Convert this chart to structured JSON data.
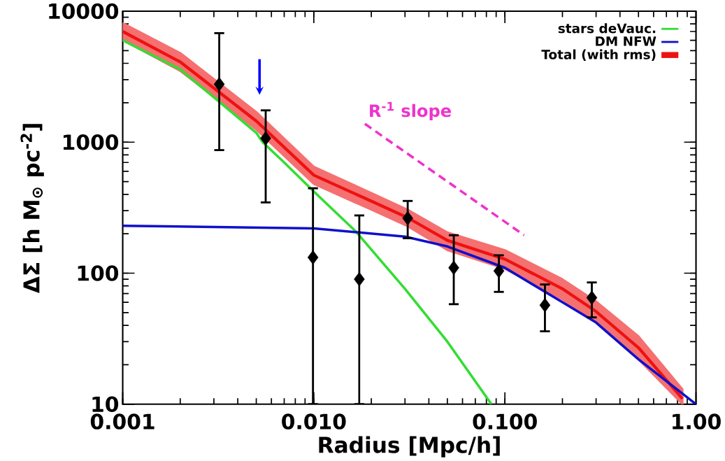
{
  "chart_data": {
    "type": "line",
    "xlabel": "Radius [Mpc/h]",
    "ylabel": "ΔΣ   [h M$_{⊙}$ pc$^{-2}$]",
    "log": "xy",
    "xlim": [
      0.001,
      1.0
    ],
    "ylim": [
      10,
      10000
    ],
    "xticks": [
      {
        "value": 0.001,
        "label": "0.001"
      },
      {
        "value": 0.01,
        "label": "0.010"
      },
      {
        "value": 0.1,
        "label": "0.100"
      },
      {
        "value": 1.0,
        "label": "1.00"
      }
    ],
    "yticks": [
      10,
      100,
      1000,
      10000
    ],
    "legend": "top right",
    "grid": false,
    "series": [
      {
        "name": "stars deVauc.",
        "color": "#33dd33",
        "x": [
          0.001,
          0.002,
          0.003,
          0.005,
          0.0054,
          0.007,
          0.01,
          0.0165,
          0.03,
          0.05,
          0.085
        ],
        "values": [
          6000,
          3600,
          2200,
          1180,
          1000,
          700,
          420,
          210,
          76,
          30,
          10
        ]
      },
      {
        "name": "DM NFW",
        "color": "#1010cc",
        "x": [
          0.001,
          0.01,
          0.03,
          0.05,
          0.1,
          0.2,
          0.3,
          0.5,
          1.0
        ],
        "values": [
          230,
          220,
          190,
          160,
          110,
          60,
          42,
          22,
          10
        ]
      },
      {
        "name": "Total (with rms)",
        "color": "#ee1111",
        "x": [
          0.001,
          0.002,
          0.005,
          0.01,
          0.02,
          0.031,
          0.05,
          0.1,
          0.2,
          0.3,
          0.5,
          0.85
        ],
        "values": [
          7000,
          4100,
          1450,
          560,
          355,
          265,
          178,
          128,
          76,
          51,
          27,
          11
        ],
        "lower": [
          6000,
          3500,
          1250,
          480,
          305,
          228,
          150,
          108,
          63,
          42,
          22,
          10
        ],
        "upper": [
          8100,
          4800,
          1700,
          650,
          410,
          305,
          205,
          150,
          90,
          61,
          33,
          13
        ]
      },
      {
        "name": "R$^{-1}$ slope",
        "color": "#ee33cc",
        "type": "line",
        "line_style": "dashed",
        "x": [
          0.0185,
          0.126
        ],
        "values": [
          1380,
          195
        ]
      },
      {
        "type": "scatter",
        "marker": "diamond",
        "color": "#000000",
        "x": [
          0.0032,
          0.0056,
          0.0099,
          0.0173,
          0.031,
          0.054,
          0.093,
          0.162,
          0.285
        ],
        "values": [
          2770,
          1070,
          132,
          90,
          263,
          110,
          104,
          57,
          65
        ],
        "errors": [
          [
            870,
            6800
          ],
          [
            347,
            1750
          ],
          [
            10,
            445
          ],
          [
            10,
            276
          ],
          [
            185,
            356
          ],
          [
            58,
            195
          ],
          [
            72,
            137
          ],
          [
            36,
            82
          ],
          [
            46,
            85
          ]
        ]
      }
    ]
  }
}
